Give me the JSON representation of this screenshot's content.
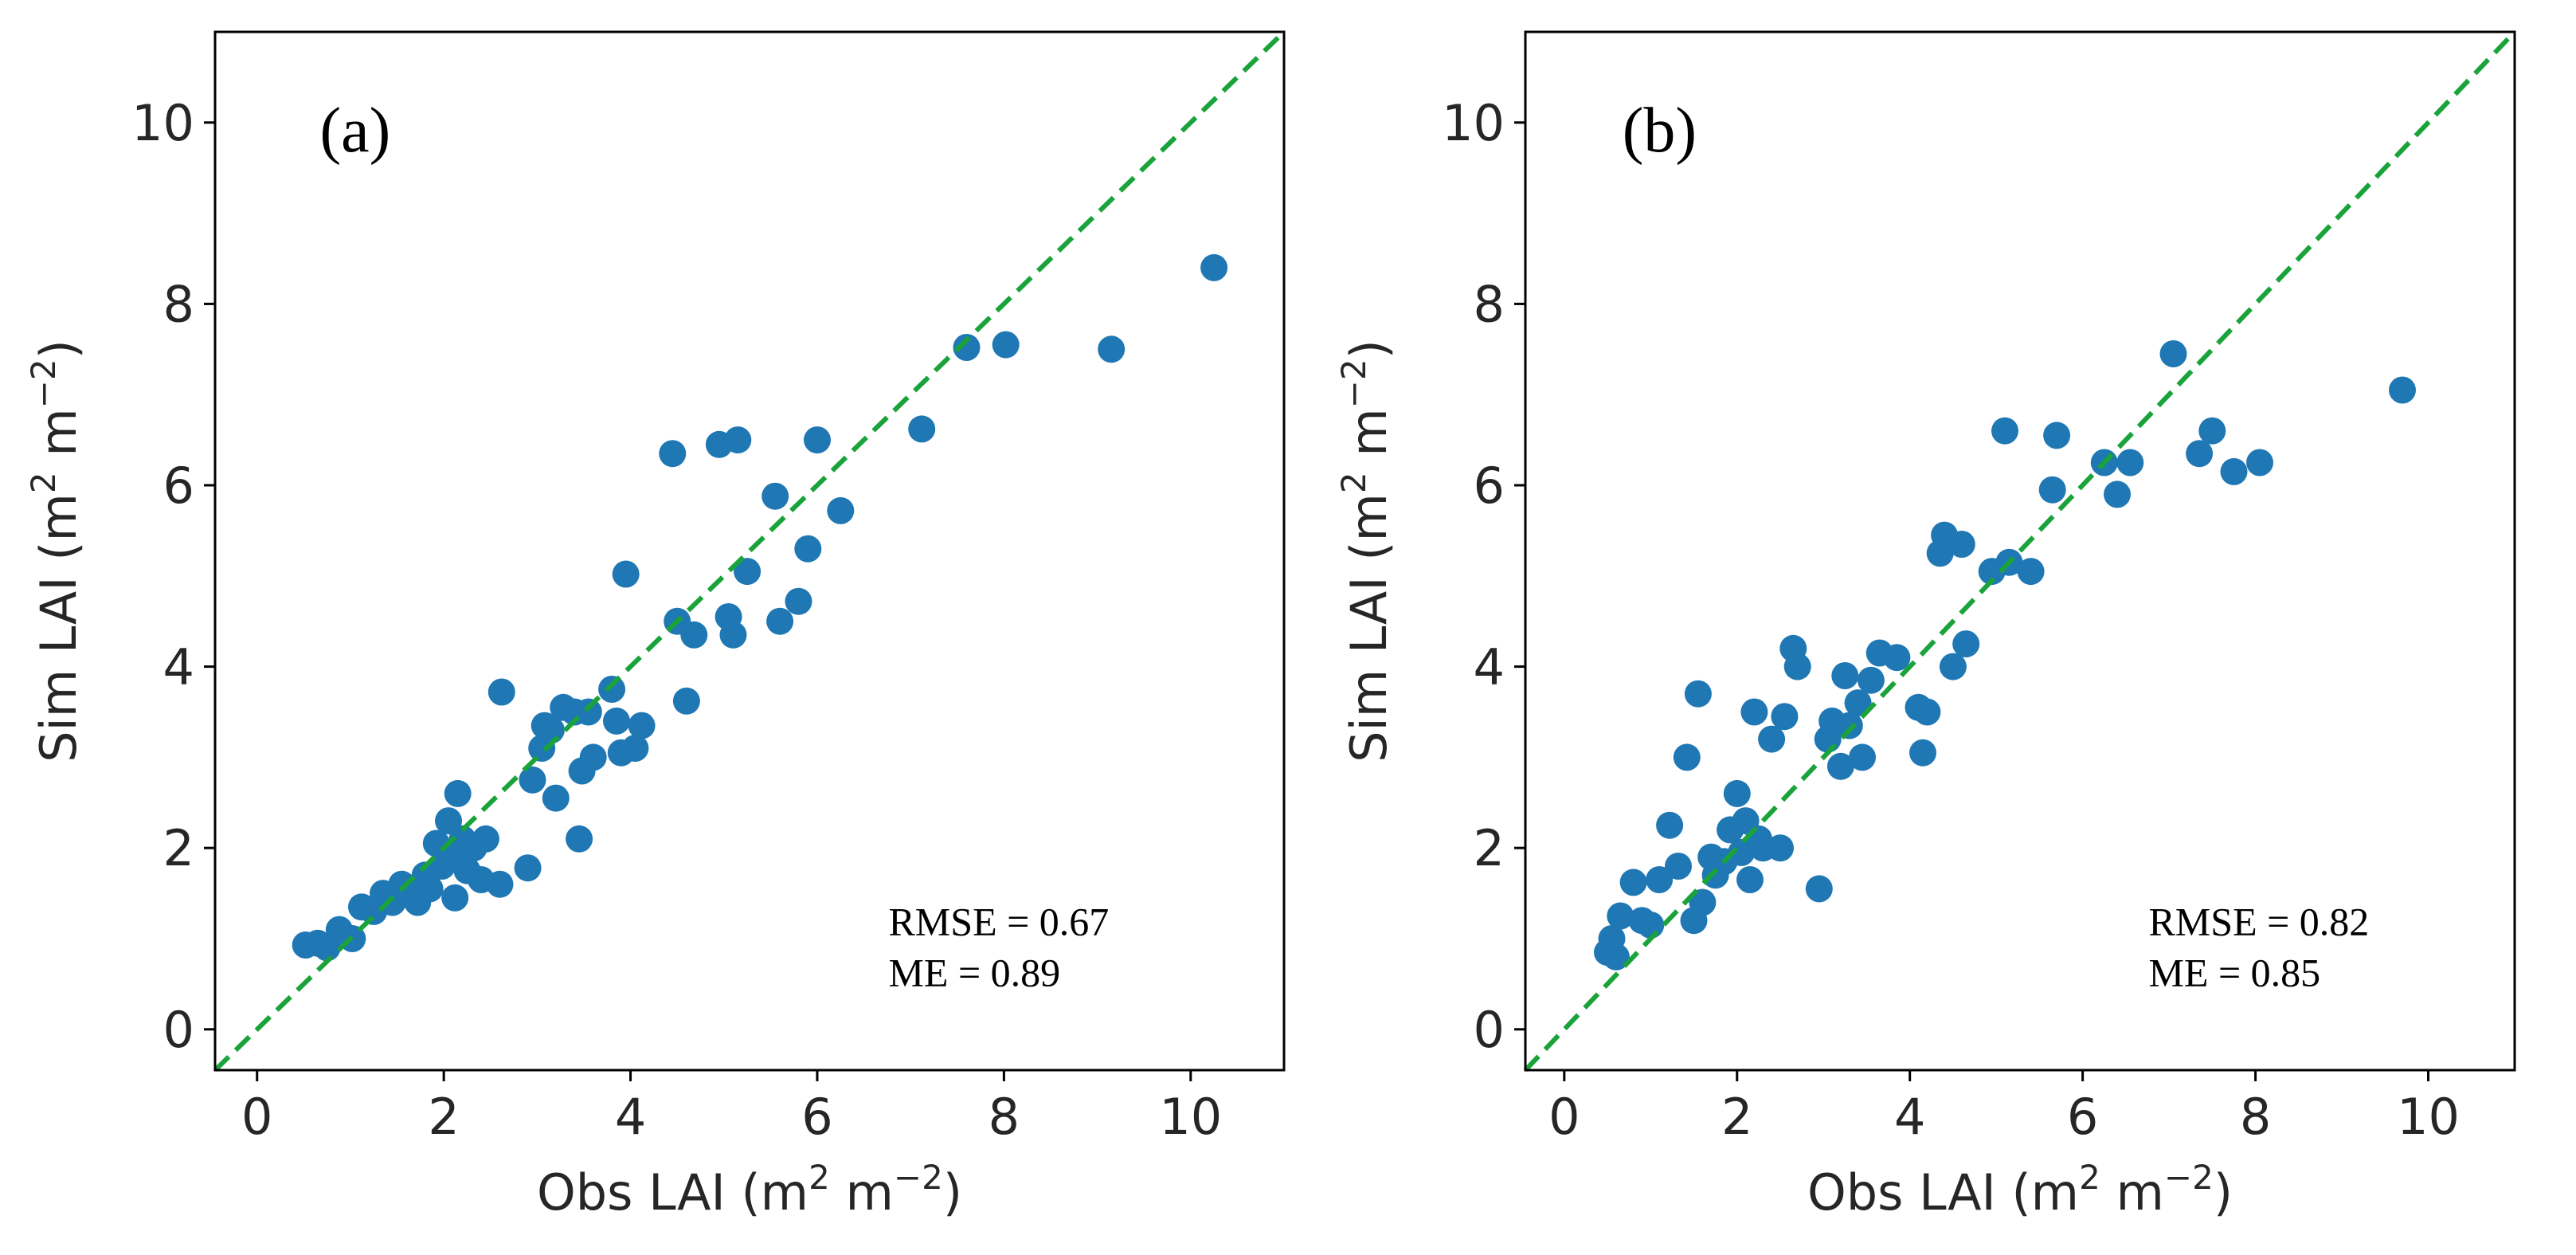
{
  "colors": {
    "point": "#1f77b4",
    "identity_line": "#1aa33a"
  },
  "chart_data": [
    {
      "type": "scatter",
      "panel_label": "(a)",
      "xlabel_main": "Obs LAI (m",
      "xlabel_sup1": "2",
      "xlabel_mid": " m",
      "xlabel_sup2": "−2",
      "xlabel_end": ")",
      "ylabel_main": "Sim LAI (m",
      "ylabel_sup1": "2",
      "ylabel_mid": " m",
      "ylabel_sup2": "−2",
      "ylabel_end": ")",
      "xlim": [
        -0.45,
        11
      ],
      "ylim": [
        -0.45,
        11
      ],
      "xticks": [
        0,
        2,
        4,
        6,
        8,
        10
      ],
      "yticks": [
        0,
        2,
        4,
        6,
        8,
        10
      ],
      "grid": false,
      "identity_line": true,
      "stats": [
        "RMSE = 0.67",
        "ME = 0.89"
      ],
      "points": [
        [
          0.52,
          0.93
        ],
        [
          0.65,
          0.95
        ],
        [
          0.75,
          0.9
        ],
        [
          0.88,
          1.1
        ],
        [
          1.02,
          1.0
        ],
        [
          1.12,
          1.35
        ],
        [
          1.25,
          1.3
        ],
        [
          1.35,
          1.5
        ],
        [
          1.45,
          1.4
        ],
        [
          1.55,
          1.6
        ],
        [
          1.65,
          1.55
        ],
        [
          1.72,
          1.4
        ],
        [
          1.8,
          1.7
        ],
        [
          1.85,
          1.55
        ],
        [
          1.92,
          2.05
        ],
        [
          1.98,
          1.8
        ],
        [
          2.05,
          2.3
        ],
        [
          2.1,
          1.9
        ],
        [
          2.15,
          2.6
        ],
        [
          2.2,
          2.1
        ],
        [
          2.25,
          1.75
        ],
        [
          2.32,
          2.0
        ],
        [
          2.4,
          1.65
        ],
        [
          2.45,
          2.1
        ],
        [
          2.6,
          1.6
        ],
        [
          2.12,
          1.45
        ],
        [
          2.62,
          3.72
        ],
        [
          2.9,
          1.78
        ],
        [
          2.95,
          2.75
        ],
        [
          3.05,
          3.1
        ],
        [
          3.08,
          3.35
        ],
        [
          3.15,
          3.3
        ],
        [
          3.2,
          2.55
        ],
        [
          3.28,
          3.55
        ],
        [
          3.4,
          3.5
        ],
        [
          3.45,
          2.1
        ],
        [
          3.48,
          2.85
        ],
        [
          3.55,
          3.5
        ],
        [
          3.6,
          3.0
        ],
        [
          3.8,
          3.75
        ],
        [
          3.85,
          3.4
        ],
        [
          3.9,
          3.05
        ],
        [
          3.95,
          5.02
        ],
        [
          4.05,
          3.1
        ],
        [
          4.12,
          3.35
        ],
        [
          4.45,
          6.35
        ],
        [
          4.5,
          4.5
        ],
        [
          4.6,
          3.62
        ],
        [
          4.68,
          4.35
        ],
        [
          4.95,
          6.45
        ],
        [
          5.05,
          4.55
        ],
        [
          5.1,
          4.35
        ],
        [
          5.15,
          6.5
        ],
        [
          5.25,
          5.05
        ],
        [
          5.55,
          5.88
        ],
        [
          5.6,
          4.5
        ],
        [
          5.8,
          4.72
        ],
        [
          5.9,
          5.3
        ],
        [
          6.0,
          6.5
        ],
        [
          6.25,
          5.72
        ],
        [
          7.12,
          6.62
        ],
        [
          7.6,
          7.52
        ],
        [
          8.02,
          7.55
        ],
        [
          9.15,
          7.5
        ],
        [
          10.25,
          8.4
        ]
      ]
    },
    {
      "type": "scatter",
      "panel_label": "(b)",
      "xlabel_main": "Obs LAI (m",
      "xlabel_sup1": "2",
      "xlabel_mid": " m",
      "xlabel_sup2": "−2",
      "xlabel_end": ")",
      "ylabel_main": "Sim LAI (m",
      "ylabel_sup1": "2",
      "ylabel_mid": " m",
      "ylabel_sup2": "−2",
      "ylabel_end": ")",
      "xlim": [
        -0.45,
        11
      ],
      "ylim": [
        -0.45,
        11
      ],
      "xticks": [
        0,
        2,
        4,
        6,
        8,
        10
      ],
      "yticks": [
        0,
        2,
        4,
        6,
        8,
        10
      ],
      "grid": false,
      "identity_line": true,
      "stats": [
        "RMSE = 0.82",
        "ME = 0.85"
      ],
      "points": [
        [
          0.5,
          0.85
        ],
        [
          0.55,
          1.0
        ],
        [
          0.6,
          0.8
        ],
        [
          0.65,
          1.25
        ],
        [
          0.8,
          1.62
        ],
        [
          0.9,
          1.2
        ],
        [
          1.0,
          1.15
        ],
        [
          1.1,
          1.65
        ],
        [
          1.22,
          2.25
        ],
        [
          1.32,
          1.8
        ],
        [
          1.42,
          3.0
        ],
        [
          1.5,
          1.2
        ],
        [
          1.55,
          3.7
        ],
        [
          1.6,
          1.4
        ],
        [
          1.7,
          1.9
        ],
        [
          1.75,
          1.7
        ],
        [
          1.85,
          1.85
        ],
        [
          1.92,
          2.2
        ],
        [
          2.0,
          2.6
        ],
        [
          2.05,
          1.95
        ],
        [
          2.1,
          2.3
        ],
        [
          2.15,
          1.65
        ],
        [
          2.2,
          3.5
        ],
        [
          2.25,
          2.1
        ],
        [
          2.3,
          2.0
        ],
        [
          2.4,
          3.2
        ],
        [
          2.5,
          2.0
        ],
        [
          2.55,
          3.45
        ],
        [
          2.65,
          4.2
        ],
        [
          2.7,
          4.0
        ],
        [
          2.95,
          1.55
        ],
        [
          3.05,
          3.2
        ],
        [
          3.1,
          3.4
        ],
        [
          3.2,
          2.9
        ],
        [
          3.25,
          3.9
        ],
        [
          3.3,
          3.35
        ],
        [
          3.4,
          3.6
        ],
        [
          3.45,
          3.0
        ],
        [
          3.55,
          3.85
        ],
        [
          3.65,
          4.15
        ],
        [
          3.85,
          4.1
        ],
        [
          4.1,
          3.55
        ],
        [
          4.15,
          3.05
        ],
        [
          4.2,
          3.5
        ],
        [
          4.35,
          5.25
        ],
        [
          4.4,
          5.45
        ],
        [
          4.5,
          4.0
        ],
        [
          4.6,
          5.35
        ],
        [
          4.65,
          4.25
        ],
        [
          4.95,
          5.05
        ],
        [
          5.1,
          6.6
        ],
        [
          5.15,
          5.15
        ],
        [
          5.4,
          5.05
        ],
        [
          5.65,
          5.95
        ],
        [
          5.7,
          6.55
        ],
        [
          6.25,
          6.25
        ],
        [
          6.4,
          5.9
        ],
        [
          6.55,
          6.25
        ],
        [
          7.05,
          7.45
        ],
        [
          7.35,
          6.35
        ],
        [
          7.5,
          6.6
        ],
        [
          7.75,
          6.15
        ],
        [
          8.05,
          6.25
        ],
        [
          9.7,
          7.05
        ]
      ]
    }
  ]
}
